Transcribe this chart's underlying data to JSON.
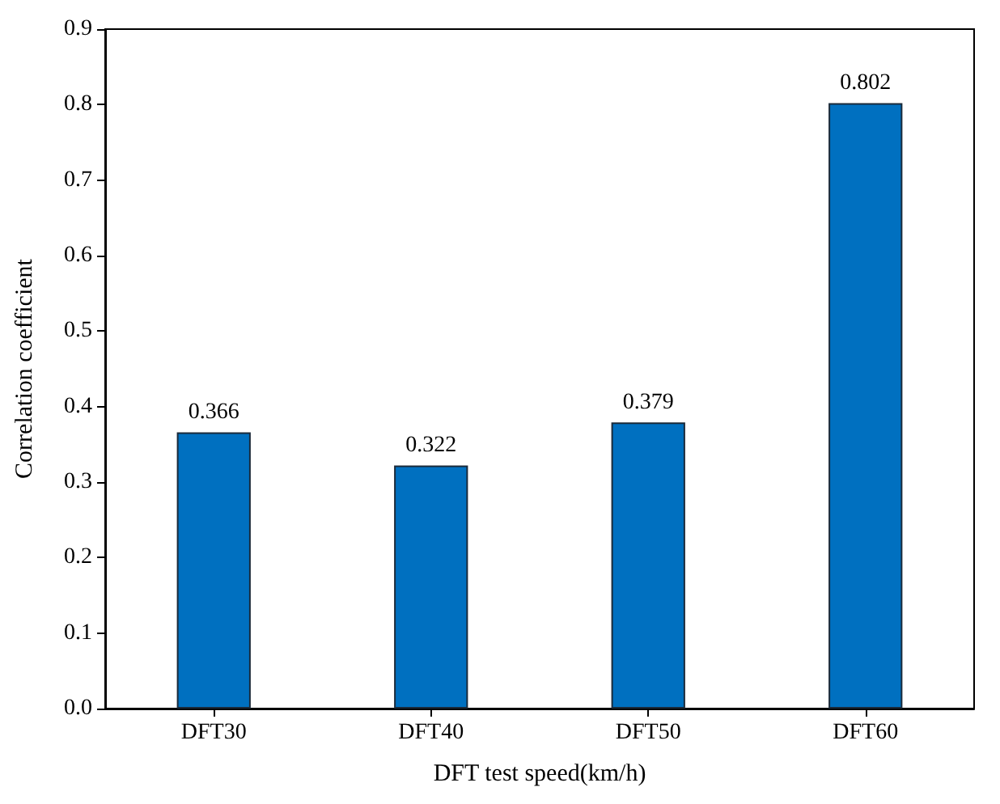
{
  "chart_data": {
    "type": "bar",
    "xlabel": "DFT test speed(km/h)",
    "ylabel": "Correlation coefficient",
    "categories": [
      "DFT30",
      "DFT40",
      "DFT50",
      "DFT60"
    ],
    "values": [
      0.366,
      0.322,
      0.379,
      0.802
    ],
    "color": "#0070c0",
    "ylim": [
      0,
      0.9
    ],
    "yticks": [
      {
        "value": 0,
        "label": "0.0"
      },
      {
        "value": 0.1,
        "label": "0.1"
      },
      {
        "value": 0.2,
        "label": "0.2"
      },
      {
        "value": 0.3,
        "label": "0.3"
      },
      {
        "value": 0.4,
        "label": "0.4"
      },
      {
        "value": 0.5,
        "label": "0.5"
      },
      {
        "value": 0.6,
        "label": "0.6"
      },
      {
        "value": 0.7,
        "label": "0.7"
      },
      {
        "value": 0.8,
        "label": "0.8"
      },
      {
        "value": 0.9,
        "label": "0.9"
      }
    ],
    "data_labels": true,
    "grid": false
  }
}
